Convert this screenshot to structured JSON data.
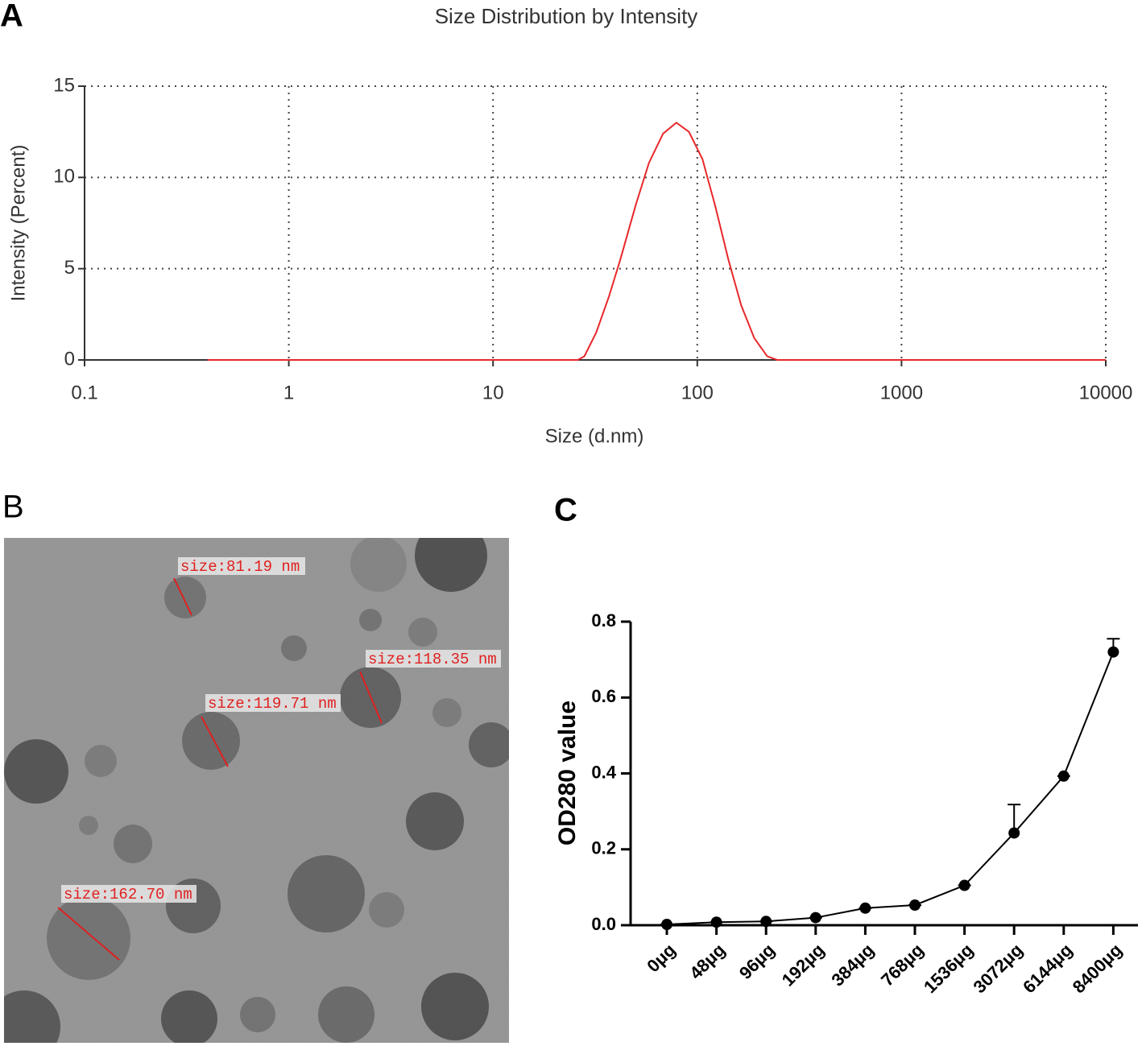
{
  "panels": [
    "A",
    "B",
    "C"
  ],
  "chart_data": [
    {
      "type": "line",
      "title": "Size Distribution by Intensity",
      "x_label": "Size (d.nm)",
      "y_label": "Intensity (Percent)",
      "xscale": "log",
      "xlim": [
        0.1,
        10000
      ],
      "xticks": [
        0.1,
        1,
        10,
        100,
        1000,
        10000
      ],
      "ylim": [
        0,
        15
      ],
      "yticks": [
        0,
        5,
        10,
        15
      ],
      "grid": true,
      "series": [
        {
          "color": "#e8282b",
          "x": [
            0.4,
            1,
            10,
            26,
            28,
            32,
            37,
            42,
            50,
            58,
            68,
            79,
            91,
            106,
            122,
            142,
            164,
            190,
            220,
            246,
            1000,
            10000
          ],
          "values": [
            0,
            0,
            0,
            0,
            0.2,
            1.5,
            3.5,
            5.5,
            8.5,
            10.8,
            12.4,
            13,
            12.5,
            11,
            8.5,
            5.5,
            3,
            1.2,
            0.2,
            0,
            0,
            0
          ]
        }
      ]
    },
    {
      "type": "line",
      "y_label": "OD280 value",
      "categories": [
        "0μg",
        "48μg",
        "96μg",
        "192μg",
        "384μg",
        "768μg",
        "1536μg",
        "3072μg",
        "6144μg",
        "8400μg"
      ],
      "ylim": [
        0,
        0.8
      ],
      "yticks": [
        {
          "value": 0,
          "label": "0.0"
        },
        0.2,
        0.4,
        0.6,
        0.8
      ],
      "series": [
        {
          "color": "#000000",
          "values": [
            0.002,
            0.008,
            0.01,
            0.02,
            0.045,
            0.053,
            0.105,
            0.243,
            0.393,
            0.72
          ],
          "errors": [
            0,
            0,
            0,
            0,
            0,
            0,
            0,
            0.075,
            0,
            0.035
          ]
        }
      ]
    }
  ],
  "micrograph": {
    "labels": [
      "size:81.19 nm",
      "size:118.35 nm",
      "size:119.71 nm",
      "size:162.70 nm"
    ]
  }
}
